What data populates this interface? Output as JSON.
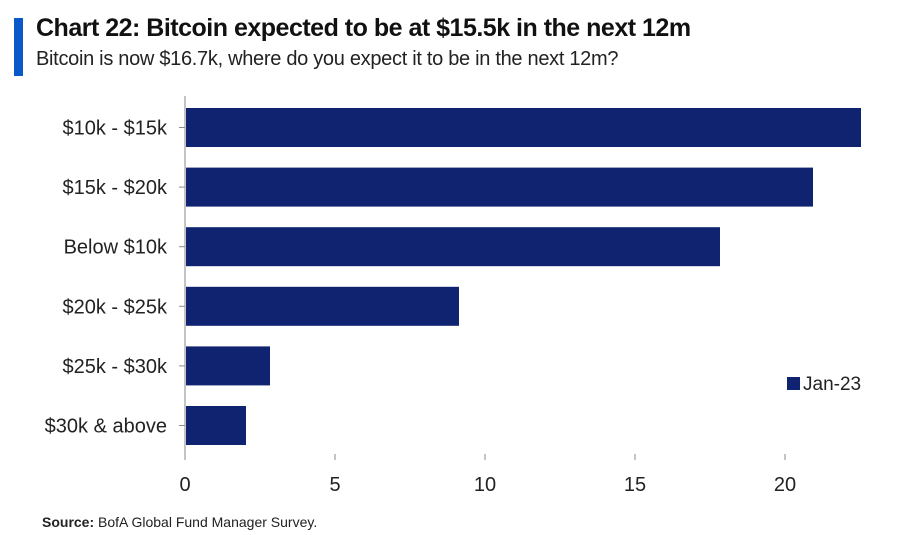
{
  "header": {
    "title": "Chart 22: Bitcoin expected to be at $15.5k in the next 12m",
    "subtitle": "Bitcoin is now $16.7k, where do you expect it to be in the next 12m?"
  },
  "footer": {
    "source_label": "Source:",
    "source_text": "BofA Global Fund Manager Survey."
  },
  "colors": {
    "accent": "#0a59c8",
    "bar": "#0f2370"
  },
  "chart_data": {
    "type": "bar",
    "orientation": "horizontal",
    "categories": [
      "$10k - $15k",
      "$15k - $20k",
      "Below $10k",
      "$20k - $25k",
      "$25k - $30k",
      "$30k & above"
    ],
    "series": [
      {
        "name": "Jan-23",
        "values": [
          22.5,
          20.9,
          17.8,
          9.1,
          2.8,
          2.0
        ]
      }
    ],
    "xlim": [
      0,
      23
    ],
    "xticks": [
      0,
      5,
      10,
      15,
      20
    ],
    "grid": false,
    "legend_position": "bottom-right"
  }
}
